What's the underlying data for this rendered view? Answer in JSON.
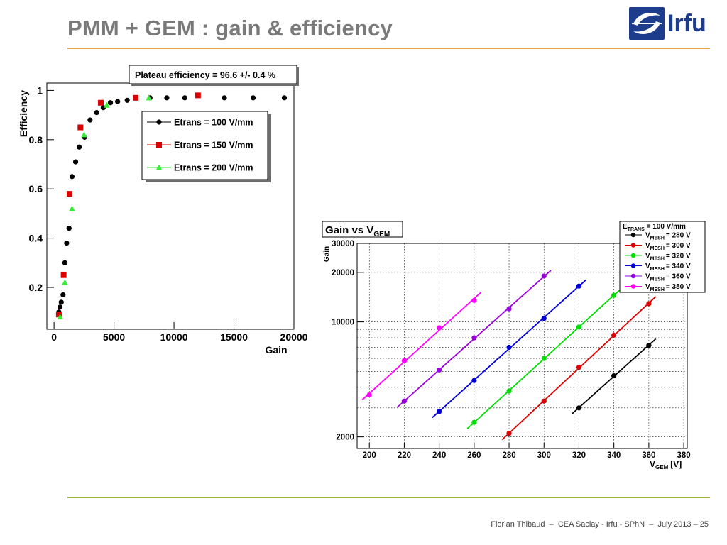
{
  "slide": {
    "title": "PMM + GEM : gain & efficiency",
    "footer": "Florian Thibaud  –  CEA Saclay - Irfu - SPhN  –  July 2013 – 25",
    "logo_text": "Irfu",
    "accent_color": "#e8a64a",
    "bottom_rule_color": "#9bb33a",
    "title_color": "#7a7a7a",
    "logo_color": "#1d3d8c"
  },
  "chart_data": [
    {
      "type": "scatter",
      "annotation": "Plateau efficiency = 96.6 +/- 0.4 %",
      "xlabel": "Gain",
      "ylabel": "Efficiency",
      "xlim": [
        -600,
        20000
      ],
      "ylim": [
        0.03,
        1.03
      ],
      "xticks": [
        0,
        5000,
        10000,
        15000,
        20000
      ],
      "xtick_labels": [
        "0",
        "5000",
        "10000",
        "15000",
        "20000"
      ],
      "yticks": [
        0.2,
        0.4,
        0.6,
        0.8,
        1
      ],
      "ytick_labels": [
        "0.2",
        "0.4",
        "0.6",
        "0.8",
        "1"
      ],
      "legend_position": "top-right",
      "series": [
        {
          "name": "Etrans = 100 V/mm",
          "color": "#000000",
          "marker": "circle",
          "x": [
            400,
            500,
            600,
            750,
            900,
            1050,
            1250,
            1500,
            1800,
            2100,
            2550,
            3000,
            3550,
            4100,
            4700,
            5300,
            6100,
            8000,
            9400,
            10900,
            14200,
            16600,
            19200
          ],
          "y": [
            0.1,
            0.12,
            0.14,
            0.17,
            0.3,
            0.38,
            0.44,
            0.65,
            0.71,
            0.77,
            0.81,
            0.88,
            0.91,
            0.93,
            0.95,
            0.955,
            0.96,
            0.97,
            0.97,
            0.97,
            0.97,
            0.97,
            0.97
          ]
        },
        {
          "name": "Etrans = 150 V/mm",
          "color": "#dd0000",
          "marker": "square",
          "x": [
            400,
            800,
            1300,
            2200,
            3900,
            6800,
            12000
          ],
          "y": [
            0.09,
            0.25,
            0.58,
            0.85,
            0.95,
            0.97,
            0.98
          ]
        },
        {
          "name": "Etrans = 200 V/mm",
          "color": "#33ee33",
          "marker": "triangle",
          "x": [
            500,
            900,
            1500,
            2500,
            4400,
            7900
          ],
          "y": [
            0.08,
            0.22,
            0.52,
            0.82,
            0.94,
            0.97
          ]
        }
      ]
    },
    {
      "type": "line",
      "title": "Gain vs V",
      "title_sub": "GEM",
      "xlabel": "V",
      "xlabel_sub": "GEM",
      "xlabel_unit": "[V]",
      "ylabel": "Gain",
      "ylog": true,
      "xlim": [
        193,
        382
      ],
      "ylim": [
        1700,
        30000
      ],
      "xticks": [
        200,
        220,
        240,
        260,
        280,
        300,
        320,
        340,
        360,
        380
      ],
      "xtick_labels": [
        "200",
        "220",
        "240",
        "260",
        "280",
        "300",
        "320",
        "340",
        "360",
        "380"
      ],
      "yticks": [
        2000,
        10000,
        20000,
        30000
      ],
      "ytick_labels": [
        "2000",
        "10000",
        "20000",
        "30000"
      ],
      "legend_header": "E",
      "legend_header_sub": "TRANS",
      "legend_header_value": " = 100 V/mm",
      "legend_position": "top-right",
      "series": [
        {
          "name": "= 280 V",
          "prefix": "V",
          "sub": "MESH",
          "color": "#000000",
          "x": [
            320,
            340,
            360
          ],
          "y": [
            3000,
            4700,
            7200
          ]
        },
        {
          "name": "= 300 V",
          "prefix": "V",
          "sub": "MESH",
          "color": "#dd0000",
          "x": [
            280,
            300,
            320,
            340,
            360
          ],
          "y": [
            2100,
            3300,
            5300,
            8300,
            12900
          ]
        },
        {
          "name": "= 320 V",
          "prefix": "V",
          "sub": "MESH",
          "color": "#00dd00",
          "x": [
            260,
            280,
            300,
            320,
            340
          ],
          "y": [
            2450,
            3800,
            6000,
            9300,
            14500
          ]
        },
        {
          "name": "= 340 V",
          "prefix": "V",
          "sub": "MESH",
          "color": "#0000dd",
          "x": [
            240,
            260,
            280,
            300,
            320
          ],
          "y": [
            2850,
            4400,
            7000,
            10500,
            16500
          ]
        },
        {
          "name": "= 360 V",
          "prefix": "V",
          "sub": "MESH",
          "color": "#9900dd",
          "x": [
            220,
            240,
            260,
            280,
            300
          ],
          "y": [
            3300,
            5100,
            8000,
            12000,
            19000
          ]
        },
        {
          "name": "= 380 V",
          "prefix": "V",
          "sub": "MESH",
          "color": "#ff00ff",
          "x": [
            200,
            220,
            240,
            260
          ],
          "y": [
            3600,
            5800,
            9200,
            13500
          ]
        }
      ]
    }
  ]
}
